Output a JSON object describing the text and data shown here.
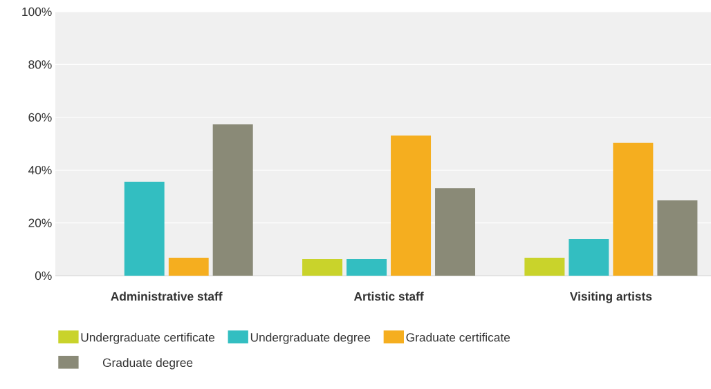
{
  "chart_data": {
    "type": "bar",
    "categories": [
      "Administrative staff",
      "Artistic staff",
      "Visiting artists"
    ],
    "series": [
      {
        "name": "Undergraduate certificate",
        "color": "#c9d32b",
        "values": [
          0,
          6.3,
          6.8
        ]
      },
      {
        "name": "Undergraduate degree",
        "color": "#33bec1",
        "values": [
          35.6,
          6.3,
          13.9
        ]
      },
      {
        "name": "Graduate certificate",
        "color": "#f5ae1f",
        "values": [
          6.8,
          53.1,
          50.3
        ]
      },
      {
        "name": "Graduate degree",
        "color": "#8a8a77",
        "values": [
          57.3,
          33.2,
          28.5
        ]
      }
    ],
    "ylim": [
      0,
      100
    ],
    "yticks": [
      {
        "value": 0,
        "label": "0%"
      },
      {
        "value": 20,
        "label": "20%"
      },
      {
        "value": 40,
        "label": "40%"
      },
      {
        "value": 60,
        "label": "60%"
      },
      {
        "value": 80,
        "label": "80%"
      },
      {
        "value": 100,
        "label": "100%"
      }
    ],
    "grid": "y",
    "legend": "bottom"
  }
}
